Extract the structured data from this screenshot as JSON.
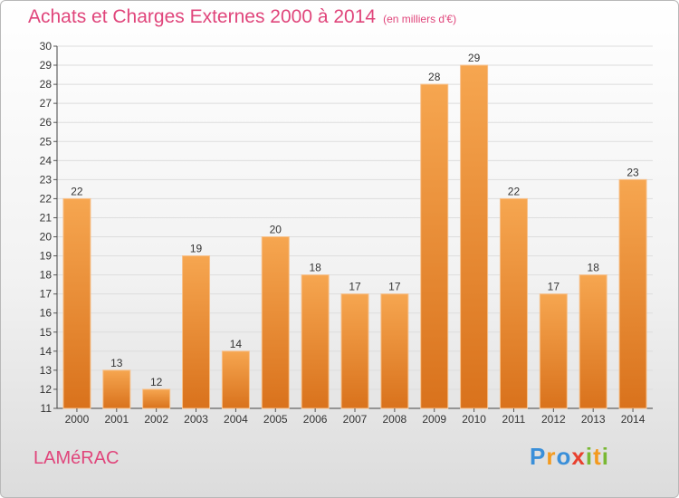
{
  "title": "Achats et Charges Externes 2000 à 2014",
  "subtitle": "(en milliers d'€)",
  "commune": "LAMéRAC",
  "logo": {
    "letters": [
      "P",
      "r",
      "o",
      "x",
      "i",
      "t",
      "i"
    ],
    "colors": [
      "#3a8fd9",
      "#f39a1f",
      "#3a8fd9",
      "#e8402e",
      "#79b833",
      "#f39a1f",
      "#79b833"
    ]
  },
  "colors": {
    "bar_top": "#f6a650",
    "bar_bottom": "#d9721c",
    "label": "#333333",
    "grid": "#dddddd"
  },
  "chart_data": {
    "type": "bar",
    "categories": [
      "2000",
      "2001",
      "2002",
      "2003",
      "2004",
      "2005",
      "2006",
      "2007",
      "2008",
      "2009",
      "2010",
      "2011",
      "2012",
      "2013",
      "2014"
    ],
    "values": [
      22,
      13,
      12,
      19,
      14,
      20,
      18,
      17,
      17,
      28,
      29,
      22,
      17,
      18,
      23
    ],
    "ylim": [
      11,
      30
    ],
    "yticks": [
      11,
      12,
      13,
      14,
      15,
      16,
      17,
      18,
      19,
      20,
      21,
      22,
      23,
      24,
      25,
      26,
      27,
      28,
      29,
      30
    ],
    "grid": true,
    "xlabel": "",
    "ylabel": ""
  }
}
